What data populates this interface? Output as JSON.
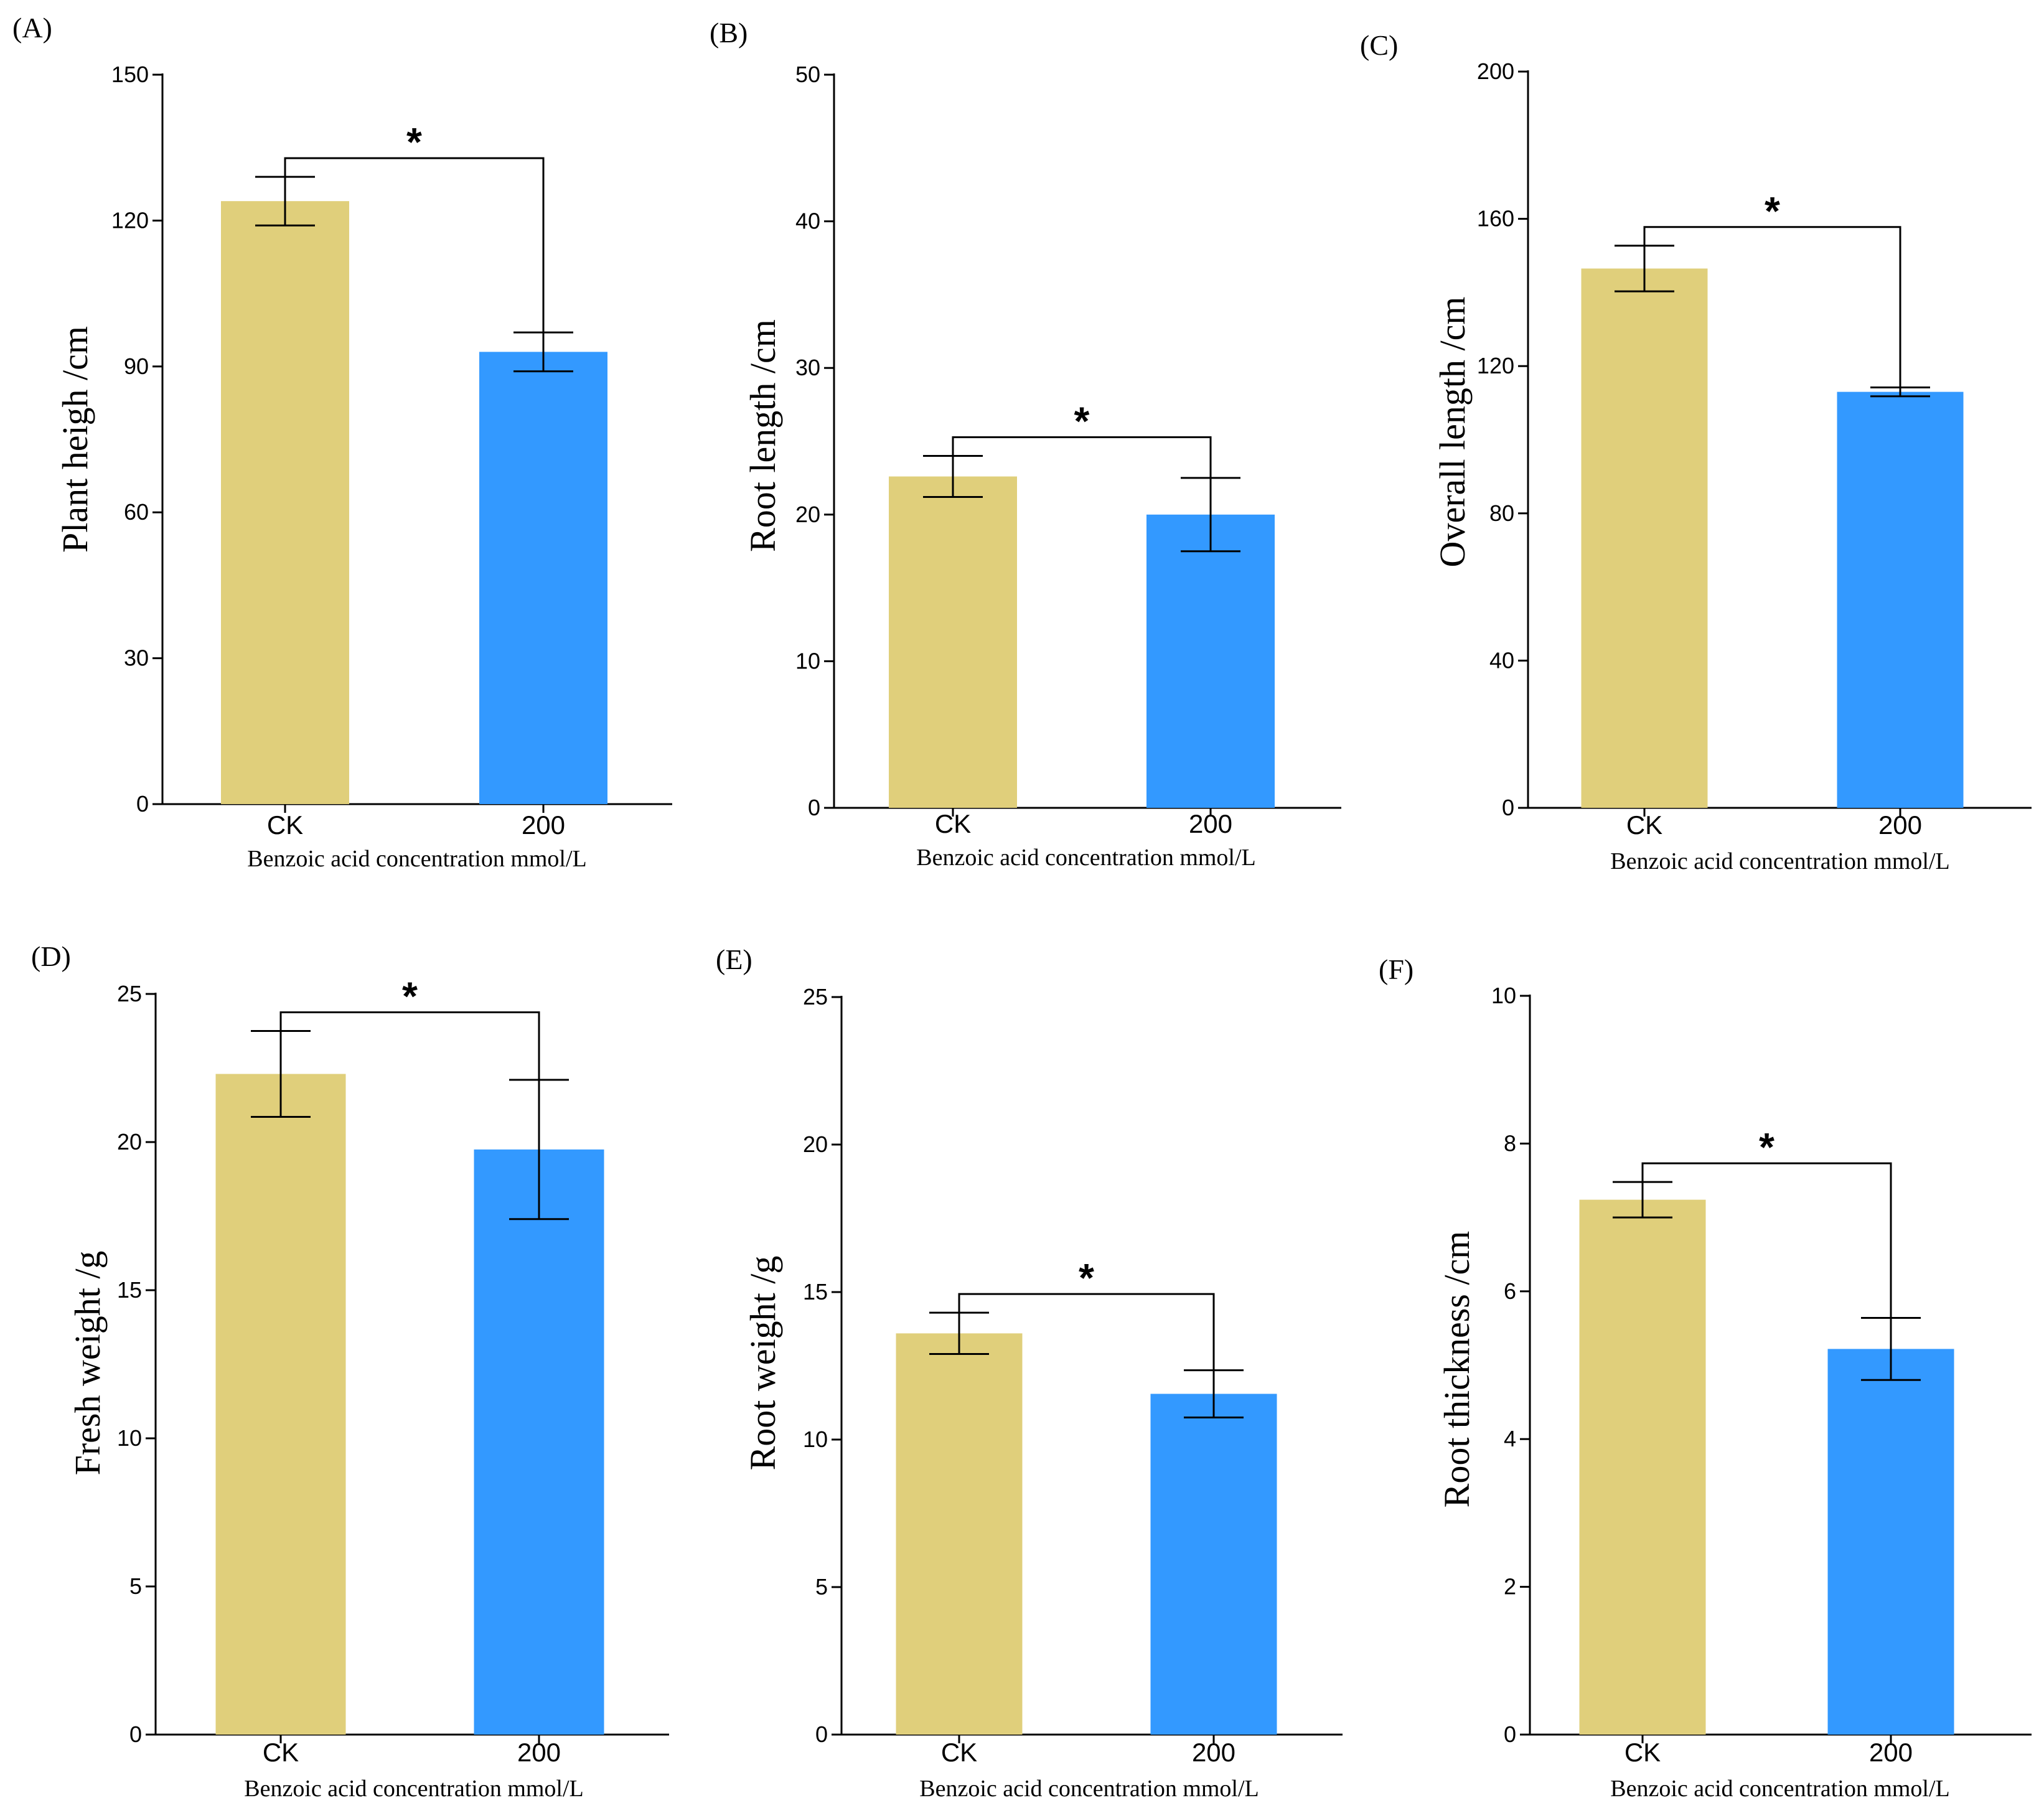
{
  "colors": {
    "ck": "#E0CF7B",
    "treated": "#3399FF"
  },
  "chart_data": [
    {
      "type": "bar",
      "panel_label": "(A)",
      "categories": [
        "CK",
        "200"
      ],
      "values": [
        124,
        93
      ],
      "errors": [
        5,
        4
      ],
      "ylim": [
        0,
        150
      ],
      "yticks": [
        0,
        30,
        60,
        90,
        120,
        150
      ],
      "ylabel": "Plant heigh /cm",
      "xlabel": "Benzoic acid concentration mmol/L",
      "significance": "*"
    },
    {
      "type": "bar",
      "panel_label": "(B)",
      "categories": [
        "CK",
        "200"
      ],
      "values": [
        22.6,
        20.0
      ],
      "errors": [
        1.4,
        2.5
      ],
      "ylim": [
        0,
        50
      ],
      "yticks": [
        0,
        10,
        20,
        30,
        40,
        50
      ],
      "ylabel": "Root length /cm",
      "xlabel": "Benzoic acid concentration mmol/L",
      "significance": "*"
    },
    {
      "type": "bar",
      "panel_label": "(C)",
      "categories": [
        "CK",
        "200"
      ],
      "values": [
        146.5,
        113
      ],
      "errors": [
        6.2,
        1.2
      ],
      "ylim": [
        0,
        200
      ],
      "yticks": [
        0,
        40,
        80,
        120,
        160,
        200
      ],
      "ylabel": "Overall length /cm",
      "xlabel": "Benzoic acid concentration mmol/L",
      "significance": "*"
    },
    {
      "type": "bar",
      "panel_label": "(D)",
      "categories": [
        "CK",
        "200"
      ],
      "values": [
        22.3,
        19.75
      ],
      "errors": [
        1.45,
        2.35
      ],
      "ylim": [
        0,
        25
      ],
      "yticks": [
        0,
        5,
        10,
        15,
        20,
        25
      ],
      "ylabel": "Fresh weight /g",
      "xlabel": "Benzoic acid concentration mmol/L",
      "significance": "*"
    },
    {
      "type": "bar",
      "panel_label": "(E)",
      "categories": [
        "CK",
        "200"
      ],
      "values": [
        13.6,
        11.55
      ],
      "errors": [
        0.7,
        0.8
      ],
      "ylim": [
        0,
        25
      ],
      "yticks": [
        0,
        5,
        10,
        15,
        20,
        25
      ],
      "ylabel": "Root weight /g",
      "xlabel": "Benzoic acid concentration mmol/L",
      "significance": "*"
    },
    {
      "type": "bar",
      "panel_label": "(F)",
      "categories": [
        "CK",
        "200"
      ],
      "values": [
        7.24,
        5.22
      ],
      "errors": [
        0.24,
        0.42
      ],
      "ylim": [
        0,
        10
      ],
      "yticks": [
        0,
        2,
        4,
        6,
        8,
        10
      ],
      "ylabel": "Root  thickness /cm",
      "xlabel": "Benzoic acid concentration mmol/L",
      "significance": "*"
    }
  ]
}
